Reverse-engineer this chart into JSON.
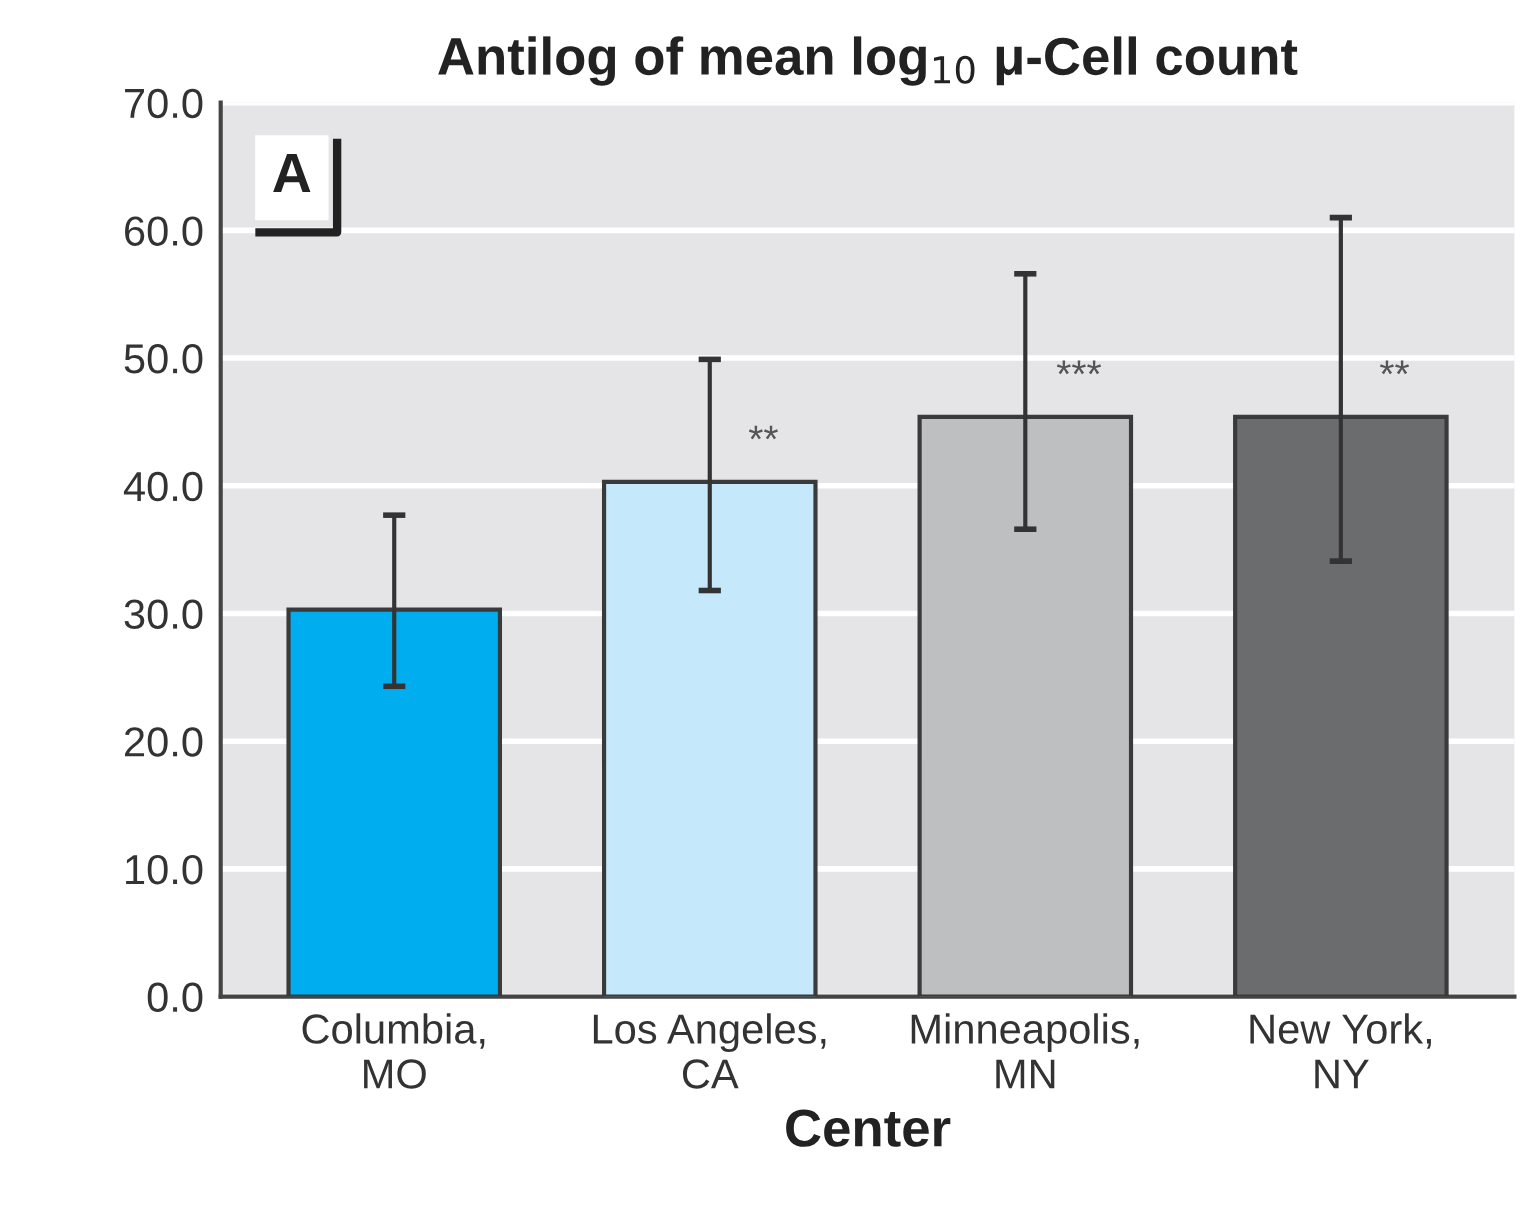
{
  "chart_data": {
    "type": "bar",
    "title": "Antilog of mean log$_{10}$ μ-Cell count",
    "xlabel": "Center",
    "categories": [
      "Columbia,\nMO",
      "Los Angeles,\nCA",
      "Minneapolis,\nMN",
      "New York,\nNY"
    ],
    "values": [
      30.3,
      40.3,
      45.4,
      45.4
    ],
    "errors": [
      [
        24.3,
        37.7
      ],
      [
        31.8,
        49.9
      ],
      [
        36.6,
        56.6
      ],
      [
        34.1,
        61.0
      ]
    ],
    "colors": [
      "#00aeef",
      "#c5e8fa",
      "#bebfc1",
      "#6b6c6e"
    ],
    "ylim": [
      0,
      70
    ],
    "yticks": [
      {
        "value": 0,
        "label": "0.0"
      },
      {
        "value": 10,
        "label": "10.0"
      },
      {
        "value": 20,
        "label": "20.0"
      },
      {
        "value": 30,
        "label": "30.0"
      },
      {
        "value": 40,
        "label": "40.0"
      },
      {
        "value": 50,
        "label": "50.0"
      },
      {
        "value": 60,
        "label": "60.0"
      },
      {
        "value": 70,
        "label": "70.0"
      }
    ],
    "grid": "y",
    "annotations": [
      "A",
      {
        "text": "**",
        "x": "Los Angeles,\nCA",
        "y": 43.4
      },
      {
        "text": "***",
        "x": "Minneapolis,\nMN",
        "y": 48.5
      },
      {
        "text": "**",
        "x": "New York,\nNY",
        "y": 48.5
      }
    ]
  }
}
